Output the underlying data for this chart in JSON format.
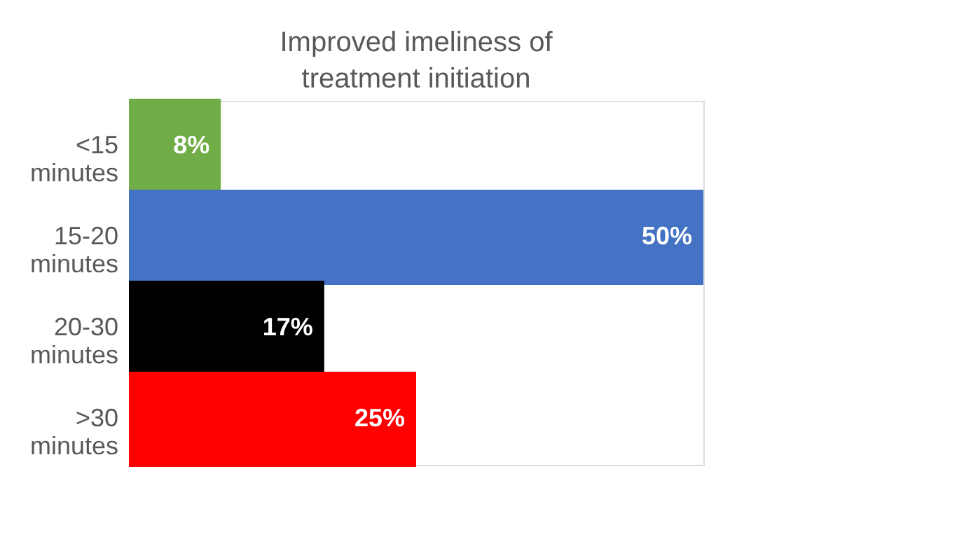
{
  "chart_data": {
    "type": "bar",
    "orientation": "horizontal",
    "title": "Improved imeliness of treatment initiation",
    "categories": [
      "<15 minutes",
      "15-20 minutes",
      "20-30 minutes",
      ">30 minutes"
    ],
    "values": [
      8,
      50,
      17,
      25
    ],
    "colors": [
      "#70ad47",
      "#4472c4",
      "#000000",
      "#ff0000"
    ],
    "value_labels": [
      "8%",
      "50%",
      "17%",
      "25%"
    ],
    "grid": false
  }
}
